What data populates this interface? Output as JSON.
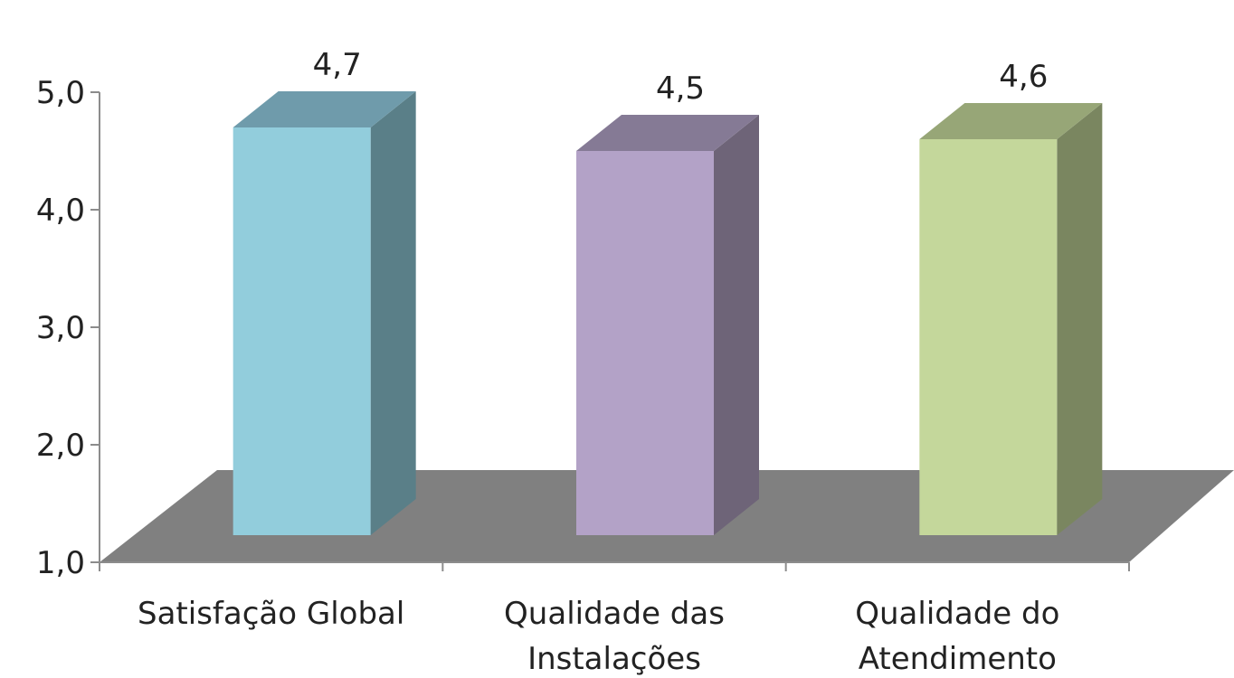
{
  "chart_data": {
    "type": "bar",
    "style": "3d-column",
    "categories": [
      [
        "Satisfação Global"
      ],
      [
        "Qualidade das",
        "Instalações"
      ],
      [
        "Qualidade do",
        "Atendimento"
      ]
    ],
    "values": [
      4.7,
      4.5,
      4.6
    ],
    "data_labels": [
      "4,7",
      "4,5",
      "4,6"
    ],
    "ylim": [
      1.0,
      5.0
    ],
    "yticks": [
      1.0,
      2.0,
      3.0,
      4.0,
      5.0
    ],
    "ytick_labels": [
      "1,0",
      "2,0",
      "3,0",
      "4,0",
      "5,0"
    ],
    "title": "",
    "xlabel": "",
    "ylabel": "",
    "grid": false,
    "legend": "none",
    "colors": {
      "bars": [
        {
          "front": "#92cddc",
          "side": "#5a7f88",
          "top": "#6f9bab"
        },
        {
          "front": "#b3a2c7",
          "side": "#6e6478",
          "top": "#857a95"
        },
        {
          "front": "#c4d79b",
          "side": "#7a8660",
          "top": "#97a677"
        }
      ],
      "floor": "#808080",
      "axis": "#8c8c8c",
      "text": "#222222"
    }
  }
}
